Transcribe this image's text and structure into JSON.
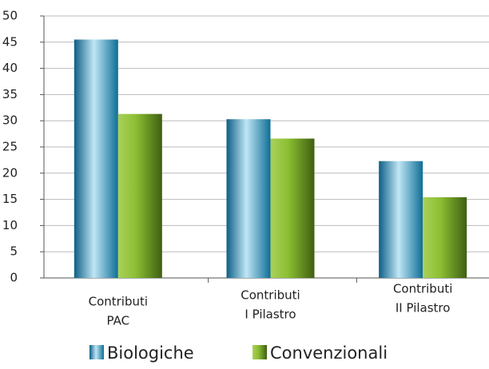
{
  "chart_data": {
    "type": "bar",
    "categories": [
      [
        "Contributi",
        "PAC"
      ],
      [
        "Contributi",
        "I Pilastro"
      ],
      [
        "Contributi",
        "II Pilastro"
      ]
    ],
    "series": [
      {
        "name": "Biologiche",
        "color": "#2a8fb5",
        "values": [
          45.5,
          30.3,
          22.3
        ]
      },
      {
        "name": "Convenzionali",
        "color": "#7fae2e",
        "values": [
          31.3,
          26.6,
          15.4
        ]
      }
    ],
    "ylim": [
      0,
      50
    ],
    "yticks": [
      0,
      5,
      10,
      15,
      20,
      25,
      30,
      35,
      40,
      45,
      50
    ],
    "grid": true
  }
}
